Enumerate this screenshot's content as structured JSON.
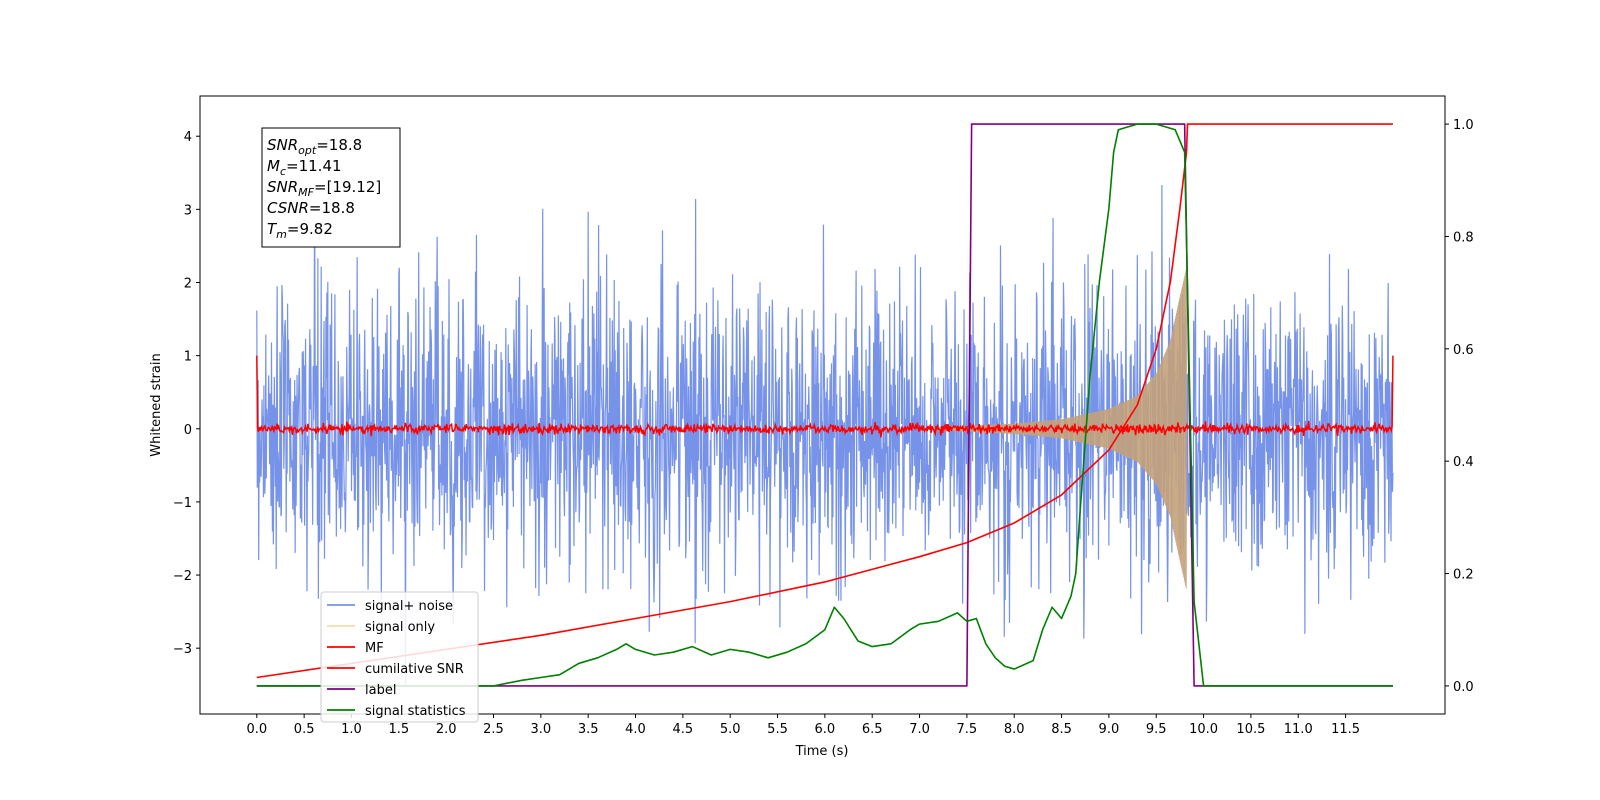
{
  "chart_data": {
    "type": "line",
    "title": "",
    "xlabel": "Time (s)",
    "ylabel": "Whitened strain",
    "y2label": "",
    "xlim": [
      -0.6,
      12.55
    ],
    "ylim": [
      -3.9,
      4.55
    ],
    "y2lim": [
      -0.05,
      1.05
    ],
    "xticks": [
      0.0,
      0.5,
      1.0,
      1.5,
      2.0,
      2.5,
      3.0,
      3.5,
      4.0,
      4.5,
      5.0,
      5.5,
      6.0,
      6.5,
      7.0,
      7.5,
      8.0,
      8.5,
      9.0,
      9.5,
      10.0,
      10.5,
      11.0,
      11.5
    ],
    "xtick_labels": [
      "0.0",
      "0.5",
      "1.0",
      "1.5",
      "2.0",
      "2.5",
      "3.0",
      "3.5",
      "4.0",
      "4.5",
      "5.0",
      "5.5",
      "6.0",
      "6.5",
      "7.0",
      "7.5",
      "8.0",
      "8.5",
      "9.0",
      "9.5",
      "10.0",
      "10.5",
      "11.0",
      "11.5"
    ],
    "yticks": [
      -3,
      -2,
      -1,
      0,
      1,
      2,
      3,
      4
    ],
    "ytick_labels": [
      "−3",
      "−2",
      "−1",
      "0",
      "1",
      "2",
      "3",
      "4"
    ],
    "y2ticks": [
      0.0,
      0.2,
      0.4,
      0.6,
      0.8,
      1.0
    ],
    "y2tick_labels": [
      "0.0",
      "0.2",
      "0.4",
      "0.6",
      "0.8",
      "1.0"
    ],
    "grid": false,
    "legend_position": "lower-left",
    "series": [
      {
        "name": "signal+ noise",
        "axis": "left",
        "color": "#4169e1",
        "kind": "noise",
        "x_range": [
          0.0,
          12.0
        ],
        "envelope": [
          [
            0.0,
            1.6
          ],
          [
            12.0,
            1.6
          ]
        ],
        "max_spike": 3.5
      },
      {
        "name": "signal only",
        "axis": "left",
        "color": "#c4a27a",
        "kind": "chirp",
        "x_range": [
          7.0,
          9.82
        ],
        "envelope": [
          [
            7.0,
            0.01
          ],
          [
            7.5,
            0.04
          ],
          [
            8.0,
            0.07
          ],
          [
            8.5,
            0.13
          ],
          [
            9.0,
            0.27
          ],
          [
            9.3,
            0.45
          ],
          [
            9.5,
            0.75
          ],
          [
            9.65,
            1.2
          ],
          [
            9.75,
            1.8
          ],
          [
            9.82,
            2.2
          ]
        ]
      },
      {
        "name": "MF",
        "axis": "left",
        "color": "#ff0000",
        "kind": "jitter",
        "x_range": [
          0.0,
          12.0
        ],
        "center": 0.0,
        "amplitude": 0.06,
        "endpoints": [
          [
            0.0,
            1.0
          ],
          [
            12.0,
            1.0
          ]
        ]
      },
      {
        "name": "cumilative SNR",
        "axis": "right",
        "color": "#ff0000",
        "kind": "line",
        "points": [
          [
            0.0,
            0.015
          ],
          [
            1.0,
            0.04
          ],
          [
            2.0,
            0.065
          ],
          [
            3.0,
            0.09
          ],
          [
            4.0,
            0.12
          ],
          [
            5.0,
            0.15
          ],
          [
            6.0,
            0.185
          ],
          [
            7.0,
            0.23
          ],
          [
            7.5,
            0.255
          ],
          [
            8.0,
            0.29
          ],
          [
            8.5,
            0.34
          ],
          [
            9.0,
            0.42
          ],
          [
            9.3,
            0.5
          ],
          [
            9.5,
            0.6
          ],
          [
            9.65,
            0.72
          ],
          [
            9.75,
            0.85
          ],
          [
            9.82,
            0.95
          ],
          [
            9.83,
            1.0
          ],
          [
            12.0,
            1.0
          ]
        ]
      },
      {
        "name": "label",
        "axis": "right",
        "color": "#800080",
        "kind": "line",
        "points": [
          [
            0.0,
            0.0
          ],
          [
            7.5,
            0.0
          ],
          [
            7.55,
            1.0
          ],
          [
            9.8,
            1.0
          ],
          [
            9.9,
            0.0
          ],
          [
            12.0,
            0.0
          ]
        ]
      },
      {
        "name": "signal statistics",
        "axis": "right",
        "color": "#008000",
        "kind": "line",
        "points": [
          [
            0.0,
            0.0
          ],
          [
            2.0,
            0.0
          ],
          [
            2.5,
            0.0
          ],
          [
            2.8,
            0.01
          ],
          [
            3.0,
            0.015
          ],
          [
            3.2,
            0.02
          ],
          [
            3.4,
            0.04
          ],
          [
            3.6,
            0.05
          ],
          [
            3.8,
            0.065
          ],
          [
            3.9,
            0.075
          ],
          [
            4.0,
            0.065
          ],
          [
            4.2,
            0.055
          ],
          [
            4.4,
            0.06
          ],
          [
            4.6,
            0.07
          ],
          [
            4.8,
            0.055
          ],
          [
            5.0,
            0.065
          ],
          [
            5.2,
            0.06
          ],
          [
            5.4,
            0.05
          ],
          [
            5.6,
            0.06
          ],
          [
            5.8,
            0.075
          ],
          [
            6.0,
            0.1
          ],
          [
            6.1,
            0.14
          ],
          [
            6.2,
            0.12
          ],
          [
            6.35,
            0.08
          ],
          [
            6.5,
            0.07
          ],
          [
            6.7,
            0.075
          ],
          [
            6.9,
            0.1
          ],
          [
            7.0,
            0.11
          ],
          [
            7.2,
            0.115
          ],
          [
            7.4,
            0.13
          ],
          [
            7.5,
            0.115
          ],
          [
            7.6,
            0.12
          ],
          [
            7.7,
            0.075
          ],
          [
            7.8,
            0.05
          ],
          [
            7.9,
            0.035
          ],
          [
            8.0,
            0.03
          ],
          [
            8.2,
            0.045
          ],
          [
            8.3,
            0.1
          ],
          [
            8.4,
            0.14
          ],
          [
            8.5,
            0.12
          ],
          [
            8.6,
            0.16
          ],
          [
            8.65,
            0.2
          ],
          [
            8.7,
            0.32
          ],
          [
            8.8,
            0.55
          ],
          [
            8.9,
            0.72
          ],
          [
            9.0,
            0.85
          ],
          [
            9.05,
            0.95
          ],
          [
            9.1,
            0.99
          ],
          [
            9.3,
            1.0
          ],
          [
            9.5,
            1.0
          ],
          [
            9.7,
            0.99
          ],
          [
            9.8,
            0.95
          ],
          [
            9.9,
            0.15
          ],
          [
            10.0,
            0.0
          ],
          [
            12.0,
            0.0
          ]
        ]
      }
    ],
    "info_box": {
      "lines": [
        {
          "var": "SNR",
          "sub": "opt",
          "text": "=18.8"
        },
        {
          "var": "M",
          "sub": "c",
          "text": "=11.41"
        },
        {
          "var": "SNR",
          "sub": "MF",
          "text": "=[19.12]"
        },
        {
          "var": "CSNR",
          "sub": "",
          "text": "=18.8"
        },
        {
          "var": "T",
          "sub": "m",
          "text": "=9.82"
        }
      ]
    }
  }
}
